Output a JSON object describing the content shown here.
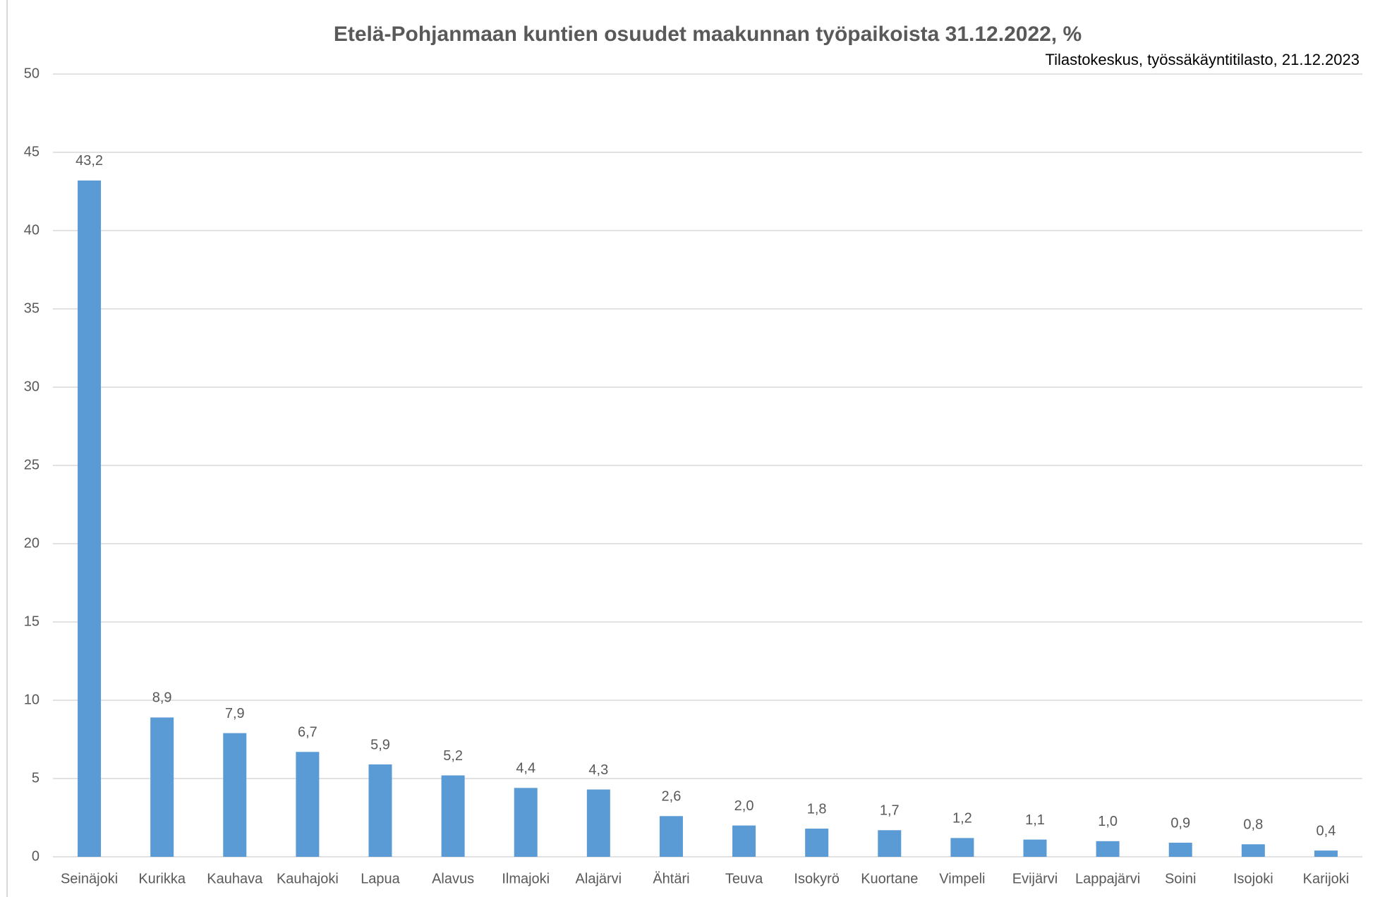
{
  "chart_data": {
    "type": "bar",
    "title": "Etelä-Pohjanmaan kuntien osuudet maakunnan työpaikoista 31.12.2022, %",
    "subtitle": "Tilastokeskus, työssäkäyntitilasto, 21.12.2023",
    "categories": [
      "Seinäjoki",
      "Kurikka",
      "Kauhava",
      "Kauhajoki",
      "Lapua",
      "Alavus",
      "Ilmajoki",
      "Alajärvi",
      "Ähtäri",
      "Teuva",
      "Isokyrö",
      "Kuortane",
      "Vimpeli",
      "Evijärvi",
      "Lappajärvi",
      "Soini",
      "Isojoki",
      "Karijoki"
    ],
    "values": [
      43.2,
      8.9,
      7.9,
      6.7,
      5.9,
      5.2,
      4.4,
      4.3,
      2.6,
      2.0,
      1.8,
      1.7,
      1.2,
      1.1,
      1.0,
      0.9,
      0.8,
      0.4
    ],
    "value_labels": [
      "43,2",
      "8,9",
      "7,9",
      "6,7",
      "5,9",
      "5,2",
      "4,4",
      "4,3",
      "2,6",
      "2,0",
      "1,8",
      "1,7",
      "1,2",
      "1,1",
      "1,0",
      "0,9",
      "0,8",
      "0,4"
    ],
    "color": "#5b9bd5",
    "ylim": [
      0,
      50
    ],
    "yticks": [
      0,
      5,
      10,
      15,
      20,
      25,
      30,
      35,
      40,
      45,
      50
    ],
    "grid": true
  }
}
